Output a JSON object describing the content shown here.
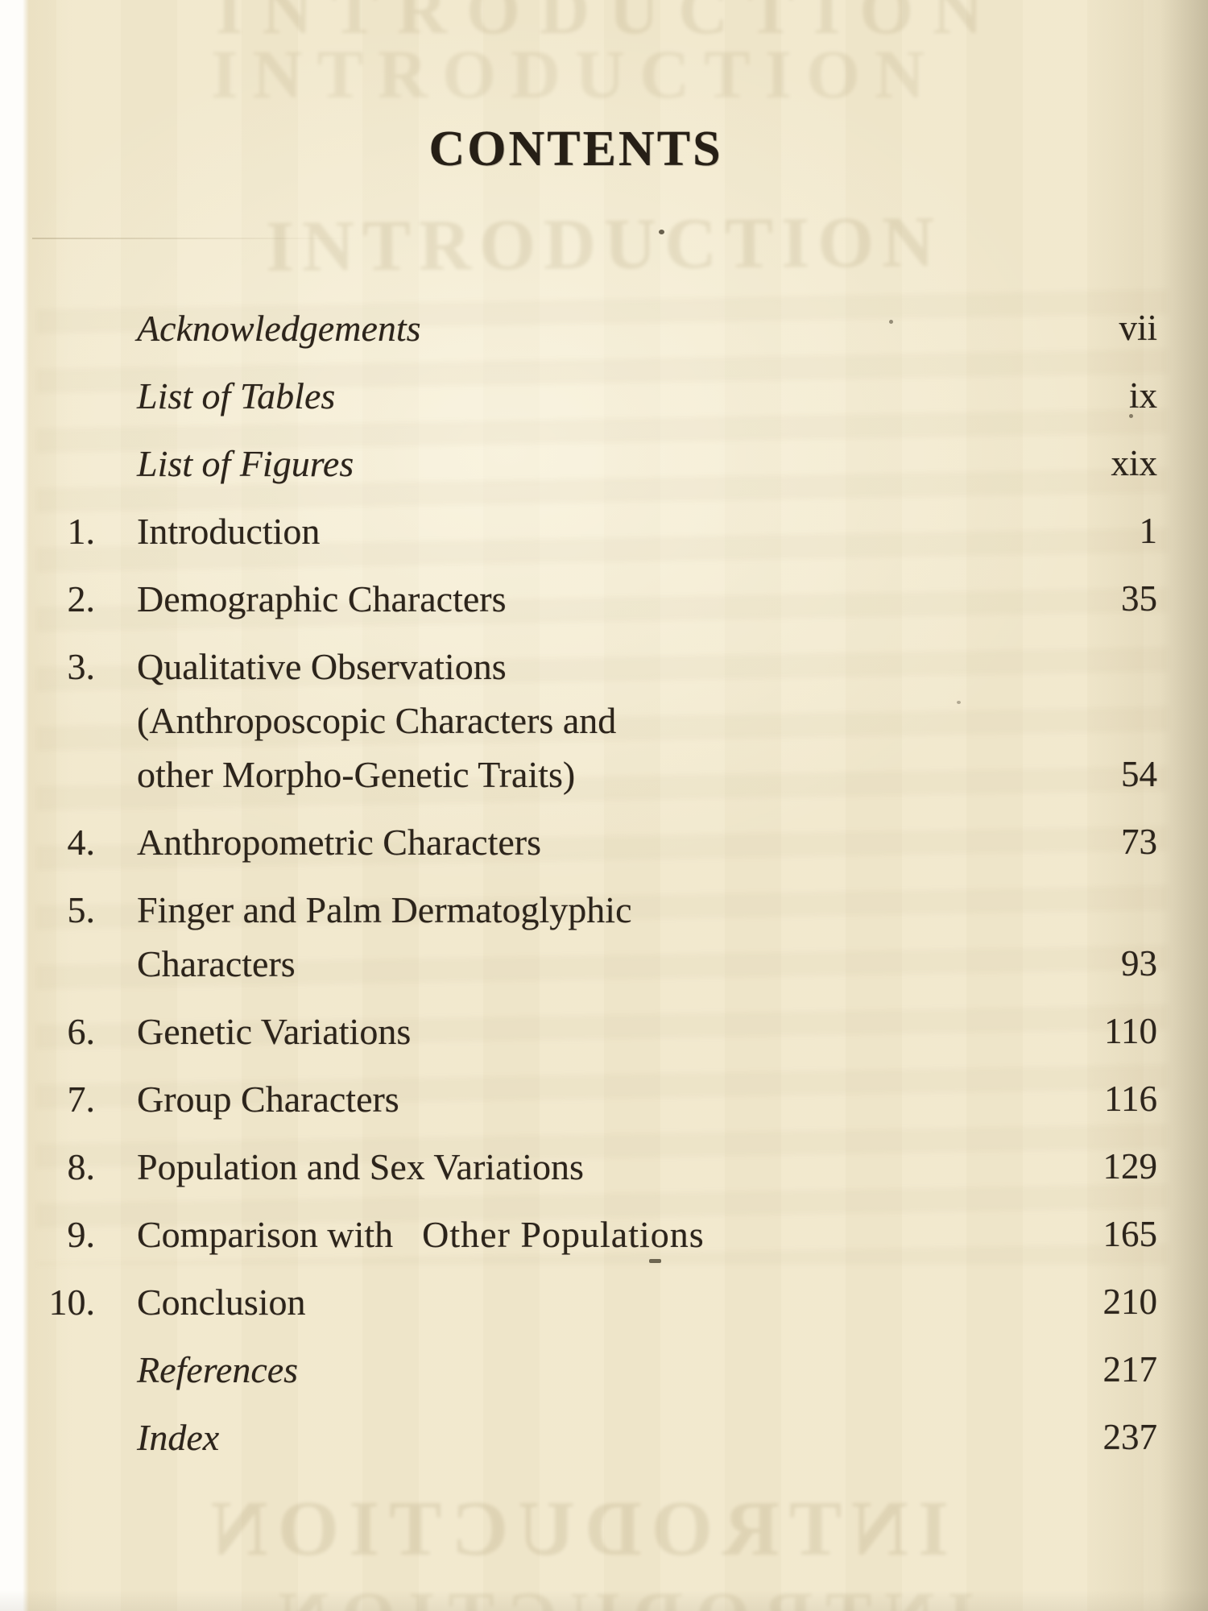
{
  "page": {
    "title": "CONTENTS"
  },
  "toc": {
    "front_matter": [
      {
        "label": "Acknowledgements",
        "page": "vii"
      },
      {
        "label": "List of Tables",
        "page": "ix"
      },
      {
        "label": "List of Figures",
        "page": "xix"
      }
    ],
    "chapters": [
      {
        "num": "1.",
        "lines": [
          "Introduction"
        ],
        "page": "1"
      },
      {
        "num": "2.",
        "lines": [
          "Demographic Characters"
        ],
        "page": "35"
      },
      {
        "num": "3.",
        "lines": [
          "Qualitative Observations",
          "(Anthroposcopic Characters and",
          "other Morpho-Genetic Traits)"
        ],
        "page": "54"
      },
      {
        "num": "4.",
        "lines": [
          "Anthropometric Characters"
        ],
        "page": "73"
      },
      {
        "num": "5.",
        "lines": [
          "Finger and Palm Dermatoglyphic",
          "Characters"
        ],
        "page": "93"
      },
      {
        "num": "6.",
        "lines": [
          "Genetic Variations"
        ],
        "page": "110"
      },
      {
        "num": "7.",
        "lines": [
          "Group Characters"
        ],
        "page": "116"
      },
      {
        "num": "8.",
        "lines": [
          "Population and Sex Variations"
        ],
        "page": "129"
      },
      {
        "num": "9.",
        "lines": [
          [
            "Comparison with",
            "Other Populations"
          ]
        ],
        "page": "165"
      },
      {
        "num": "10.",
        "lines": [
          "Conclusion"
        ],
        "page": "210"
      }
    ],
    "back_matter": [
      {
        "label": "References",
        "page": "217"
      },
      {
        "label": "Index",
        "page": "237"
      }
    ]
  },
  "ghost_bleedthrough": {
    "heading": "INTRODUCTION"
  },
  "colors": {
    "paper": "#f1e8cd",
    "ink": "#2c241b"
  }
}
